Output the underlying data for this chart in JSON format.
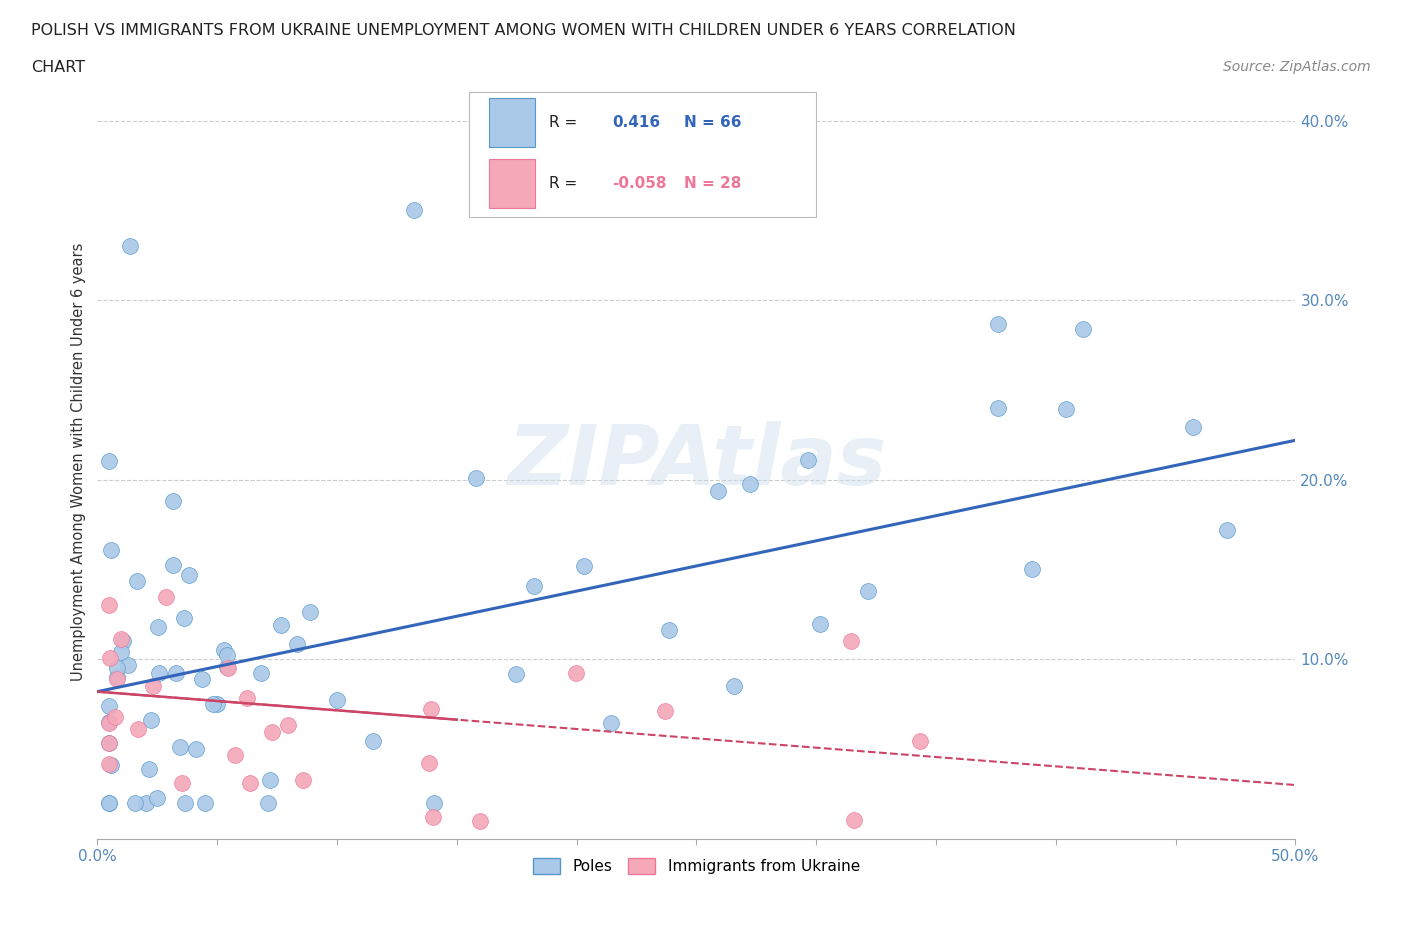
{
  "title_line1": "POLISH VS IMMIGRANTS FROM UKRAINE UNEMPLOYMENT AMONG WOMEN WITH CHILDREN UNDER 6 YEARS CORRELATION",
  "title_line2": "CHART",
  "source": "Source: ZipAtlas.com",
  "ylabel": "Unemployment Among Women with Children Under 6 years",
  "xlim": [
    0.0,
    0.5
  ],
  "ylim": [
    0.0,
    0.42
  ],
  "grid_color": "#cccccc",
  "background_color": "#ffffff",
  "poles_color": "#aac8e8",
  "ukraine_color": "#f4a8b8",
  "poles_edge_color": "#5599cc",
  "ukraine_edge_color": "#ee7799",
  "poles_line_color": "#3366bb",
  "ukraine_line_color": "#cc4466",
  "R_poles": 0.416,
  "N_poles": 66,
  "R_ukraine": -0.058,
  "N_ukraine": 28,
  "tick_color": "#5588bb",
  "title_color": "#222222",
  "ylabel_color": "#333333",
  "source_color": "#888888"
}
